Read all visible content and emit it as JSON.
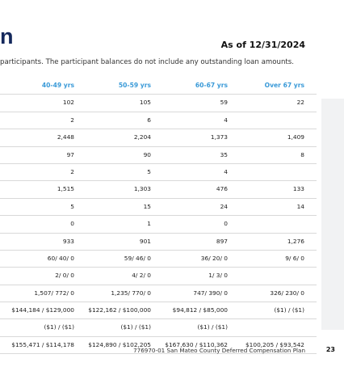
{
  "header": {
    "title": "n",
    "as_of": "As of 12/31/2024",
    "note": "participants. The participant balances do not include any outstanding loan amounts."
  },
  "table": {
    "columns": [
      "40-49 yrs",
      "50-59 yrs",
      "60-67 yrs",
      "Over 67 yrs"
    ],
    "rows": [
      [
        "102",
        "105",
        "59",
        "22"
      ],
      [
        "2",
        "6",
        "4",
        null
      ],
      [
        "2,448",
        "2,204",
        "1,373",
        "1,409"
      ],
      [
        "97",
        "90",
        "35",
        "8"
      ],
      [
        "2",
        "5",
        "4",
        null
      ],
      [
        "1,515",
        "1,303",
        "476",
        "133"
      ],
      [
        "5",
        "15",
        "24",
        "14"
      ],
      [
        "0",
        "1",
        "0",
        null
      ],
      [
        "933",
        "901",
        "897",
        "1,276"
      ],
      [
        "60/ 40/ 0",
        "59/ 46/ 0",
        "36/ 20/ 0",
        "9/ 6/ 0"
      ],
      [
        "2/ 0/ 0",
        "4/ 2/ 0",
        "1/ 3/ 0",
        null
      ],
      [
        "1,507/ 772/ 0",
        "1,235/ 770/ 0",
        "747/ 390/ 0",
        "326/ 230/ 0"
      ],
      [
        "$144,184 / $129,000",
        "$122,162 / $100,000",
        "$94,812 / $85,000",
        "($1) / ($1)"
      ],
      [
        "($1) / ($1)",
        "($1) / ($1)",
        "($1) / ($1)",
        null
      ],
      [
        "$155,471 / $114,178",
        "$124,890 / $102,205",
        "$167,630 / $110,362",
        "$100,205 / $93,542"
      ]
    ]
  },
  "footer": {
    "plan": "776970-01 San Mateo County Deferred Compensation Plan",
    "page": "23"
  }
}
